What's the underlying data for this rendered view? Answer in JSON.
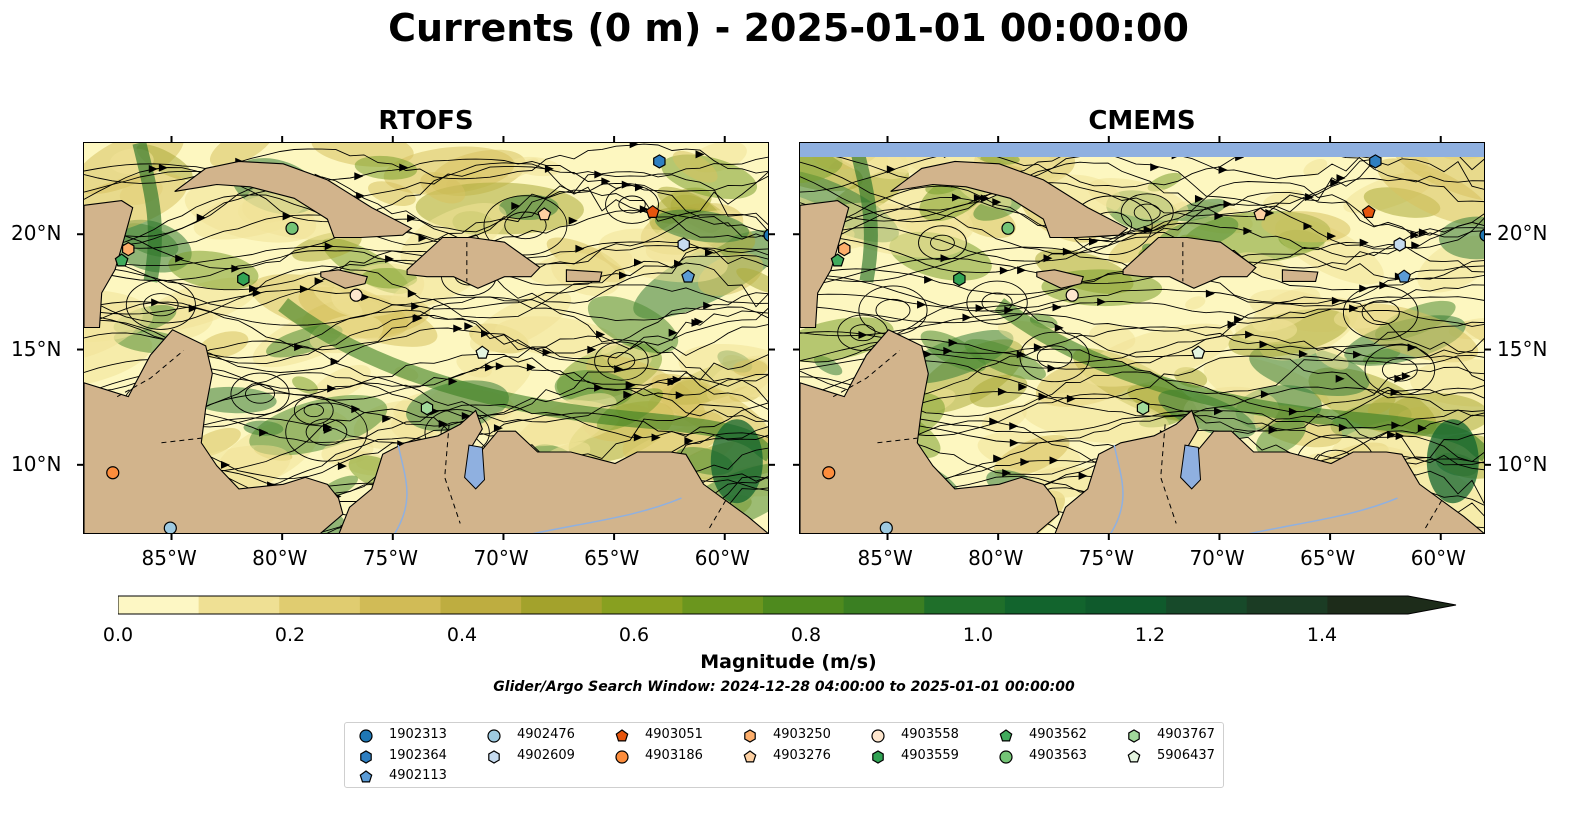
{
  "title": "Currents (0 m) - 2025-01-01 00:00:00",
  "panels": [
    {
      "title": "RTOFS"
    },
    {
      "title": "CMEMS"
    }
  ],
  "map": {
    "lon_range": [
      -89,
      -58
    ],
    "lat_range": [
      7,
      24
    ],
    "lon_ticks": [
      "85°W",
      "80°W",
      "75°W",
      "70°W",
      "65°W",
      "60°W"
    ],
    "lat_ticks": [
      "20°N",
      "15°N",
      "10°N"
    ],
    "land_color": "#d2b48c",
    "ocean_low_color": "#fdf7c0",
    "ocean_high_color": "#0f5e2c",
    "lake_color": "#8fb0e0"
  },
  "colorbar": {
    "label": "Magnitude (m/s)",
    "range": [
      0.0,
      1.5
    ],
    "extend": "max",
    "ticks": [
      "0.0",
      "0.2",
      "0.4",
      "0.6",
      "0.8",
      "1.0",
      "1.2",
      "1.4"
    ],
    "colors": [
      "#fdf7c4",
      "#efe094",
      "#e0cc70",
      "#d1bb56",
      "#bead40",
      "#a3a22c",
      "#88a020",
      "#6b961e",
      "#4e8a1e",
      "#3a7f22",
      "#1f6f2a",
      "#12642d",
      "#0f5a2c",
      "#174a2a",
      "#1b3c24",
      "#1d2c1a"
    ]
  },
  "search_window": "Glider/Argo Search Window: 2024-12-28 04:00:00 to 2025-01-01 00:00:00",
  "legend": [
    {
      "id": "1902313",
      "marker": "circle",
      "color": "#1f77b4"
    },
    {
      "id": "1902364",
      "marker": "hexagon",
      "color": "#2f7fc1"
    },
    {
      "id": "4902113",
      "marker": "pentagon",
      "color": "#5b9bd5"
    },
    {
      "id": "4902476",
      "marker": "circle",
      "color": "#9ecae1"
    },
    {
      "id": "4902609",
      "marker": "hexagon",
      "color": "#c6dbef"
    },
    {
      "id": "4903051",
      "marker": "pentagon",
      "color": "#e6550d"
    },
    {
      "id": "4903186",
      "marker": "circle",
      "color": "#fd8d3c"
    },
    {
      "id": "4903250",
      "marker": "hexagon",
      "color": "#fdae6b"
    },
    {
      "id": "4903276",
      "marker": "pentagon",
      "color": "#fdd0a2"
    },
    {
      "id": "4903558",
      "marker": "circle",
      "color": "#fee6ce"
    },
    {
      "id": "4903559",
      "marker": "hexagon",
      "color": "#31a354"
    },
    {
      "id": "4903562",
      "marker": "pentagon",
      "color": "#41ab5d"
    },
    {
      "id": "4903563",
      "marker": "circle",
      "color": "#74c476"
    },
    {
      "id": "4903767",
      "marker": "hexagon",
      "color": "#a1d99b"
    },
    {
      "id": "5906437",
      "marker": "pentagon",
      "color": "#e5f5e0"
    }
  ],
  "floats": [
    {
      "id": "1902313",
      "lon": -58.0,
      "lat": 20.0
    },
    {
      "id": "1902364",
      "lon": -63.0,
      "lat": 23.2
    },
    {
      "id": "4902113",
      "lon": -61.7,
      "lat": 18.2
    },
    {
      "id": "4902476",
      "lon": -85.1,
      "lat": 7.3
    },
    {
      "id": "4902609",
      "lon": -61.9,
      "lat": 19.6
    },
    {
      "id": "4903051",
      "lon": -63.3,
      "lat": 21.0
    },
    {
      "id": "4903186",
      "lon": -87.7,
      "lat": 9.7
    },
    {
      "id": "4903250",
      "lon": -87.0,
      "lat": 19.4
    },
    {
      "id": "4903276",
      "lon": -68.2,
      "lat": 20.9
    },
    {
      "id": "4903558",
      "lon": -76.7,
      "lat": 17.4
    },
    {
      "id": "4903559",
      "lon": -81.8,
      "lat": 18.1
    },
    {
      "id": "4903562",
      "lon": -87.3,
      "lat": 18.9
    },
    {
      "id": "4903563",
      "lon": -79.6,
      "lat": 20.3
    },
    {
      "id": "4903767",
      "lon": -73.5,
      "lat": 12.5
    },
    {
      "id": "5906437",
      "lon": -71.0,
      "lat": 14.9
    }
  ]
}
